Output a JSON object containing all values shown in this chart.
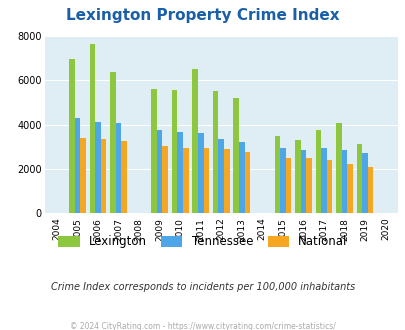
{
  "title": "Lexington Property Crime Index",
  "years": [
    2004,
    2005,
    2006,
    2007,
    2008,
    2009,
    2010,
    2011,
    2012,
    2013,
    2014,
    2015,
    2016,
    2017,
    2018,
    2019,
    2020
  ],
  "lexington": [
    null,
    6950,
    7650,
    6400,
    null,
    5600,
    5550,
    6500,
    5500,
    5200,
    null,
    3500,
    3300,
    3750,
    4050,
    3100,
    null
  ],
  "tennessee": [
    null,
    4300,
    4100,
    4050,
    null,
    3750,
    3650,
    3600,
    3350,
    3200,
    null,
    2950,
    2850,
    2950,
    2850,
    2700,
    null
  ],
  "national": [
    null,
    3400,
    3350,
    3250,
    null,
    3050,
    2950,
    2950,
    2900,
    2750,
    null,
    2500,
    2500,
    2400,
    2200,
    2100,
    null
  ],
  "bar_width": 0.27,
  "ylim": [
    0,
    8000
  ],
  "yticks": [
    0,
    2000,
    4000,
    6000,
    8000
  ],
  "color_lexington": "#8dc63f",
  "color_tennessee": "#4da6e8",
  "color_national": "#f5a623",
  "bg_color": "#deeef4",
  "title_color": "#1a5fa8",
  "subtitle": "Crime Index corresponds to incidents per 100,000 inhabitants",
  "footer": "© 2024 CityRating.com - https://www.cityrating.com/crime-statistics/",
  "subtitle_color": "#333333",
  "footer_color": "#aaaaaa",
  "legend_labels": [
    "Lexington",
    "Tennessee",
    "National"
  ]
}
